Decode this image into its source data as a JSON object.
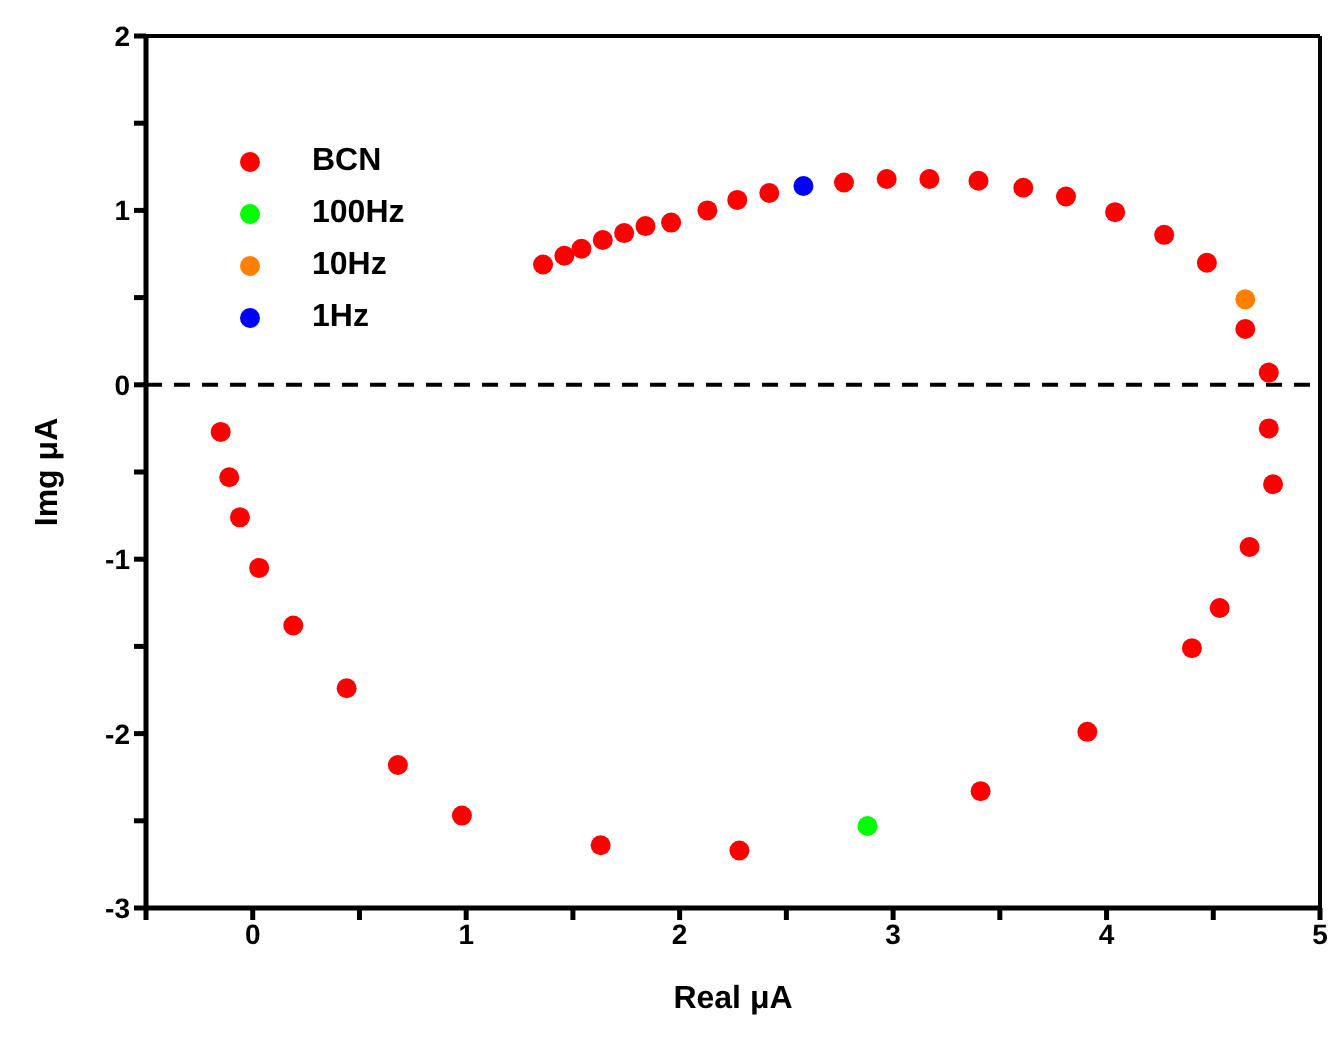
{
  "chart_data": {
    "type": "scatter",
    "xlabel": "Real μA",
    "ylabel": "Img μA",
    "xlim": [
      -0.5,
      5
    ],
    "xticks": [
      {
        "value": -0.5,
        "label": null
      },
      0,
      {
        "value": 0.5,
        "label": null
      },
      1,
      {
        "value": 1.5,
        "label": null
      },
      2,
      {
        "value": 2.5,
        "label": null
      },
      3,
      {
        "value": 3.5,
        "label": null
      },
      4,
      {
        "value": 4.5,
        "label": null
      },
      5
    ],
    "ylim": [
      -3,
      2
    ],
    "yticks": [
      -3,
      {
        "value": -2.5,
        "label": null
      },
      -2,
      {
        "value": -1.5,
        "label": null
      },
      -1,
      {
        "value": -0.5,
        "label": null
      },
      0,
      {
        "value": 0.5,
        "label": null
      },
      1,
      {
        "value": 1.5,
        "label": null
      },
      2
    ],
    "marker": "circle",
    "legend": "top left",
    "ref_lines": [
      {
        "axis": "y",
        "value": 0,
        "color": "#000000",
        "line_style": "dashed"
      }
    ],
    "series": [
      {
        "name": "BCN",
        "color": "#ff0000",
        "x": [
          1.36,
          1.46,
          1.54,
          1.64,
          1.74,
          1.84,
          1.96,
          2.13,
          2.27,
          2.42,
          2.77,
          2.97,
          3.17,
          3.4,
          3.61,
          3.81,
          4.04,
          4.27,
          4.47,
          4.65,
          4.76,
          4.76,
          4.78,
          4.67,
          4.53,
          4.4,
          3.91,
          3.41,
          2.28,
          1.63,
          0.98,
          0.68,
          0.44,
          0.19,
          0.03,
          -0.06,
          -0.11,
          -0.15
        ],
        "values": [
          0.69,
          0.74,
          0.78,
          0.83,
          0.87,
          0.91,
          0.93,
          1.0,
          1.06,
          1.1,
          1.16,
          1.18,
          1.18,
          1.17,
          1.13,
          1.08,
          0.99,
          0.86,
          0.7,
          0.32,
          0.07,
          -0.25,
          -0.57,
          -0.93,
          -1.28,
          -1.51,
          -1.99,
          -2.33,
          -2.67,
          -2.64,
          -2.47,
          -2.18,
          -1.74,
          -1.38,
          -1.05,
          -0.76,
          -0.53,
          -0.27
        ]
      },
      {
        "name": "100Hz",
        "color": "#00ff00",
        "x": [
          2.88
        ],
        "values": [
          -2.53
        ]
      },
      {
        "name": "10Hz",
        "color": "#ff8000",
        "x": [
          4.65
        ],
        "values": [
          0.49
        ]
      },
      {
        "name": "1Hz",
        "color": "#0000ff",
        "x": [
          2.58
        ],
        "values": [
          1.14
        ]
      }
    ]
  }
}
